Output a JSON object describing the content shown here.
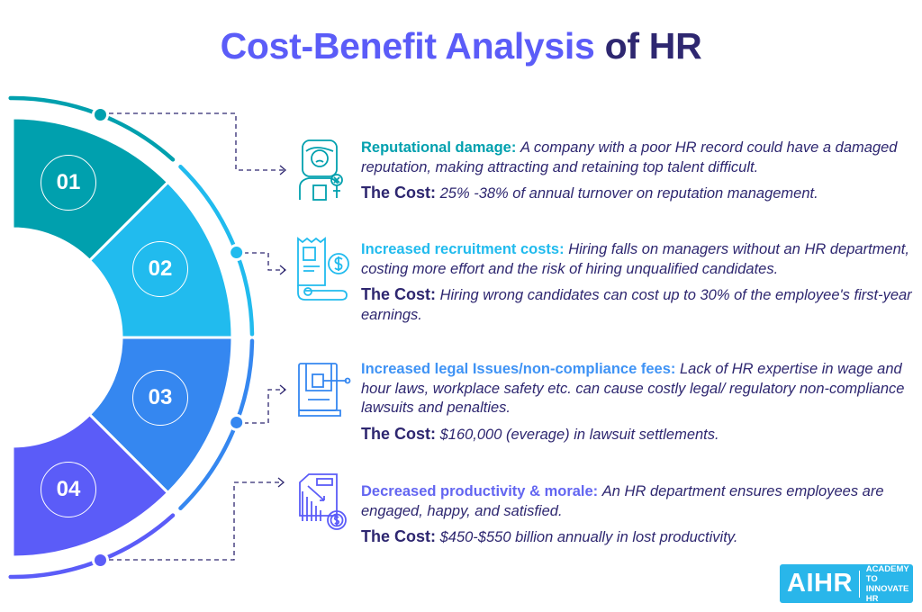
{
  "title": {
    "highlight": "Cost-Benefit Analysis",
    "rest": "of HR"
  },
  "colors": {
    "teal": "#00A0AE",
    "sky": "#21BBEE",
    "blue": "#3587F0",
    "violet": "#5B5CF8",
    "text": "#2E2770",
    "logo": "#29B6EA"
  },
  "segments": [
    {
      "number": "01",
      "icon": "frustrated-person-icon"
    },
    {
      "number": "02",
      "icon": "receipt-dollar-icon"
    },
    {
      "number": "03",
      "icon": "gavel-law-book-icon"
    },
    {
      "number": "04",
      "icon": "declining-chart-dollar-icon"
    }
  ],
  "items": [
    {
      "heading": "Reputational damage:",
      "description": "A company with a poor HR record could have a damaged reputation, making attracting and retaining top talent difficult.",
      "cost_label": "The Cost:",
      "cost": "25% -38% of annual turnover on reputation management."
    },
    {
      "heading": "Increased recruitment costs:",
      "description": "Hiring falls on managers without an HR department, costing more effort and the risk of hiring unqualified candidates.",
      "cost_label": "The Cost:",
      "cost": "Hiring wrong candidates can cost up to 30% of the employee's first-year earnings."
    },
    {
      "heading": "Increased legal Issues/non-compliance fees:",
      "description": "Lack of HR expertise in wage and hour laws, workplace safety etc. can cause costly legal/ regulatory non-compliance lawsuits and penalties.",
      "cost_label": "The Cost:",
      "cost": "$160,000 (everage) in lawsuit settlements."
    },
    {
      "heading": "Decreased productivity & morale:",
      "description": "An HR department ensures employees are engaged, happy, and satisfied.",
      "cost_label": "The Cost:",
      "cost": "$450-$550 billion annually in lost productivity."
    }
  ],
  "logo": {
    "brand": "AIHR",
    "tagline_line1": "ACADEMY TO",
    "tagline_line2": "INNOVATE HR"
  }
}
